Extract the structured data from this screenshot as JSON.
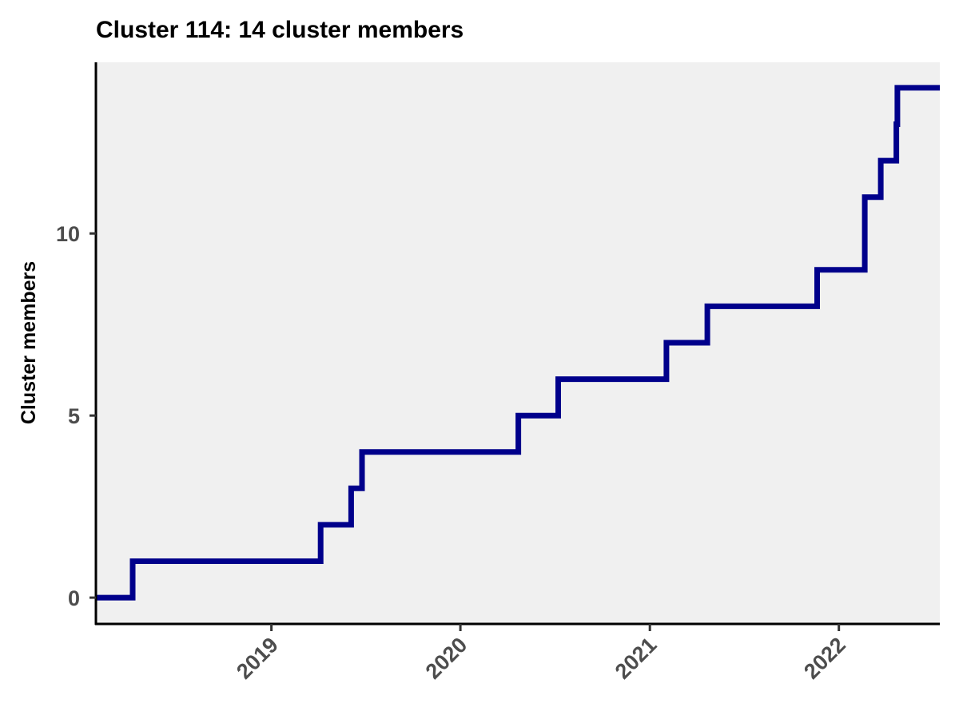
{
  "chart_data": {
    "type": "line",
    "step": true,
    "title": "Cluster 114: 14 cluster members",
    "xlabel": "",
    "ylabel": "Cluster members",
    "x_ticks": [
      "2019",
      "2020",
      "2021",
      "2022"
    ],
    "y_ticks": [
      "0",
      "5",
      "10"
    ],
    "xlim": [
      "2018-01-27",
      "2022-07-15"
    ],
    "ylim": [
      -0.7,
      14.7
    ],
    "grid": false,
    "legend": "none",
    "panel_background": "#f0f0f0",
    "series": [
      {
        "color": "#00008b",
        "points": [
          {
            "x": "2018-01-27",
            "y": 0
          },
          {
            "x": "2018-04-08",
            "y": 1
          },
          {
            "x": "2019-04-06",
            "y": 2
          },
          {
            "x": "2019-06-04",
            "y": 3
          },
          {
            "x": "2019-06-25",
            "y": 4
          },
          {
            "x": "2020-04-22",
            "y": 5
          },
          {
            "x": "2020-07-08",
            "y": 6
          },
          {
            "x": "2021-02-02",
            "y": 7
          },
          {
            "x": "2021-04-22",
            "y": 8
          },
          {
            "x": "2021-11-20",
            "y": 9
          },
          {
            "x": "2022-02-20",
            "y": 11
          },
          {
            "x": "2022-03-23",
            "y": 12
          },
          {
            "x": "2022-04-22",
            "y": 13
          },
          {
            "x": "2022-04-24",
            "y": 14
          },
          {
            "x": "2022-07-15",
            "y": 14
          }
        ]
      }
    ]
  }
}
